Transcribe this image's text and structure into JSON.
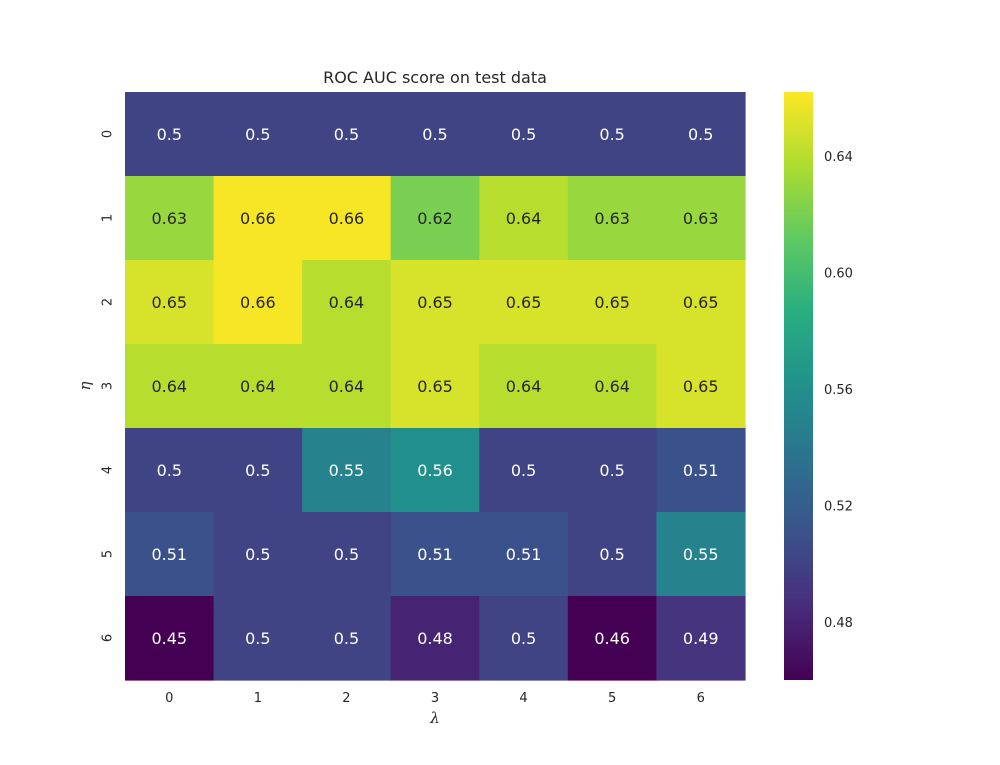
{
  "chart_data": {
    "type": "heatmap",
    "title": "ROC AUC score on test data",
    "xlabel": "λ",
    "ylabel": "η",
    "x_categories": [
      "0",
      "1",
      "2",
      "3",
      "4",
      "5",
      "6"
    ],
    "y_categories": [
      "0",
      "1",
      "2",
      "3",
      "4",
      "5",
      "6"
    ],
    "values": [
      [
        0.5,
        0.5,
        0.5,
        0.5,
        0.5,
        0.5,
        0.5
      ],
      [
        0.63,
        0.66,
        0.66,
        0.62,
        0.64,
        0.63,
        0.63
      ],
      [
        0.65,
        0.66,
        0.64,
        0.65,
        0.65,
        0.65,
        0.65
      ],
      [
        0.64,
        0.64,
        0.64,
        0.65,
        0.64,
        0.64,
        0.65
      ],
      [
        0.5,
        0.5,
        0.55,
        0.56,
        0.5,
        0.5,
        0.51
      ],
      [
        0.51,
        0.5,
        0.5,
        0.51,
        0.51,
        0.5,
        0.55
      ],
      [
        0.45,
        0.5,
        0.5,
        0.48,
        0.5,
        0.46,
        0.49
      ]
    ],
    "annotations": [
      [
        "0.5",
        "0.5",
        "0.5",
        "0.5",
        "0.5",
        "0.5",
        "0.5"
      ],
      [
        "0.63",
        "0.66",
        "0.66",
        "0.62",
        "0.64",
        "0.63",
        "0.63"
      ],
      [
        "0.65",
        "0.66",
        "0.64",
        "0.65",
        "0.65",
        "0.65",
        "0.65"
      ],
      [
        "0.64",
        "0.64",
        "0.64",
        "0.65",
        "0.64",
        "0.64",
        "0.65"
      ],
      [
        "0.5",
        "0.5",
        "0.55",
        "0.56",
        "0.5",
        "0.5",
        "0.51"
      ],
      [
        "0.51",
        "0.5",
        "0.5",
        "0.51",
        "0.51",
        "0.5",
        "0.55"
      ],
      [
        "0.45",
        "0.5",
        "0.5",
        "0.48",
        "0.5",
        "0.46",
        "0.49"
      ]
    ],
    "colormap": "viridis",
    "colorbar": {
      "range": [
        0.46,
        0.662
      ],
      "ticks": [
        0.48,
        0.52,
        0.56,
        0.6,
        0.64
      ],
      "tick_labels": [
        "0.48",
        "0.52",
        "0.56",
        "0.60",
        "0.64"
      ]
    },
    "grid": false
  }
}
